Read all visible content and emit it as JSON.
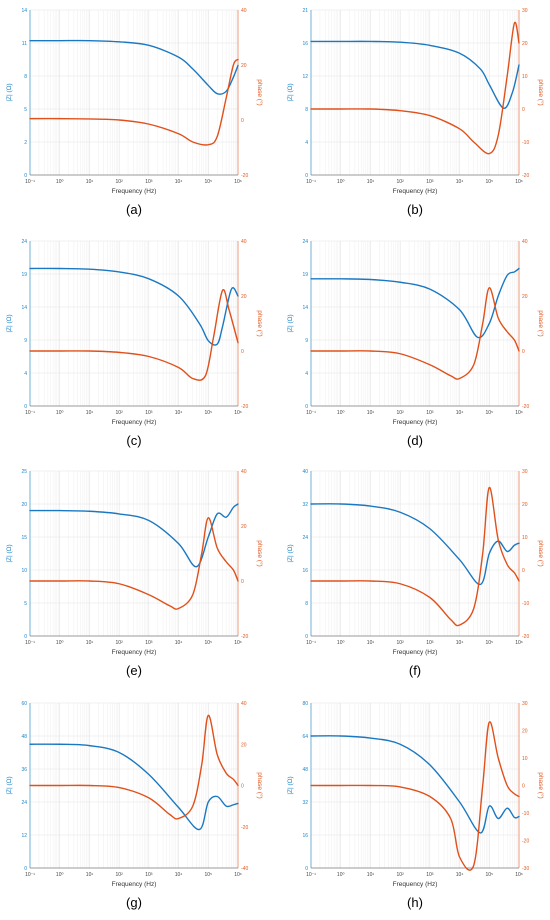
{
  "figure": {
    "colors": {
      "magnitude": "#1a78c2",
      "phase": "#e0501a",
      "grid": "#e6e6e6",
      "axis": "#444444"
    },
    "axis_labels": {
      "x": "Frequency (Hz)",
      "y_left": "|Z| (Ω)",
      "y_right": "phase (°)"
    }
  },
  "chart_data": [
    {
      "panel": "(a)",
      "type": "line",
      "caption": "(a)",
      "xscale": "log",
      "xlim": [
        0.1,
        1000000
      ],
      "x_ticks": [
        "10⁻¹",
        "10⁰",
        "10¹",
        "10²",
        "10³",
        "10⁴",
        "10⁵",
        "10⁶"
      ],
      "xlabel": "Frequency (Hz)",
      "ylabel_left": "|Z| (Ω)",
      "ylabel_right": "phase (°)",
      "ylim_left": [
        0,
        14
      ],
      "ylim_right": [
        -20,
        40
      ],
      "y_ticks_left": [
        "0",
        "2",
        "5",
        "8",
        "11",
        "14"
      ],
      "y_ticks_right": [
        "-20",
        "0",
        "20",
        "40"
      ],
      "series": [
        {
          "axis": "left",
          "x": [
            0.1,
            1,
            10,
            100,
            1000,
            10000,
            30000,
            100000,
            200000,
            400000,
            700000,
            1000000
          ],
          "y": [
            11.4,
            11.4,
            11.4,
            11.3,
            11.0,
            10.0,
            9.0,
            7.6,
            6.9,
            7.1,
            8.3,
            9.3
          ]
        },
        {
          "axis": "right",
          "x": [
            0.1,
            1,
            10,
            100,
            1000,
            10000,
            30000,
            100000,
            200000,
            400000,
            700000,
            1000000
          ],
          "y": [
            0.5,
            0.5,
            0.4,
            0.0,
            -1.5,
            -5.0,
            -8.0,
            -9.0,
            -6.0,
            8.0,
            20.0,
            22.0
          ]
        }
      ]
    },
    {
      "panel": "(b)",
      "type": "line",
      "caption": "(b)",
      "xscale": "log",
      "xlim": [
        0.1,
        1000000
      ],
      "x_ticks": [
        "10⁻¹",
        "10⁰",
        "10¹",
        "10²",
        "10³",
        "10⁴",
        "10⁵",
        "10⁶"
      ],
      "xlabel": "Frequency (Hz)",
      "ylabel_left": "|Z| (Ω)",
      "ylabel_right": "phase (°)",
      "ylim_left": [
        0,
        21
      ],
      "ylim_right": [
        -20,
        30
      ],
      "y_ticks_left": [
        "0",
        "4",
        "8",
        "12",
        "16",
        "21"
      ],
      "y_ticks_right": [
        "-20",
        "-10",
        "0",
        "10",
        "20",
        "30"
      ],
      "series": [
        {
          "axis": "left",
          "x": [
            0.1,
            1,
            10,
            100,
            1000,
            10000,
            50000,
            100000,
            300000,
            600000,
            1000000
          ],
          "y": [
            17.0,
            17.0,
            17.0,
            16.9,
            16.5,
            15.5,
            13.5,
            11.5,
            8.5,
            10.5,
            14.0
          ]
        },
        {
          "axis": "right",
          "x": [
            0.1,
            1,
            10,
            100,
            1000,
            10000,
            30000,
            100000,
            200000,
            400000,
            700000,
            1000000
          ],
          "y": [
            0.0,
            0.0,
            0.0,
            -0.5,
            -2.0,
            -6.0,
            -10.0,
            -13.5,
            -8.0,
            10.0,
            26.0,
            20.0
          ]
        }
      ]
    },
    {
      "panel": "(c)",
      "type": "line",
      "caption": "(c)",
      "xscale": "log",
      "xlim": [
        0.1,
        1000000
      ],
      "x_ticks": [
        "10⁻¹",
        "10⁰",
        "10¹",
        "10²",
        "10³",
        "10⁴",
        "10⁵",
        "10⁶"
      ],
      "xlabel": "Frequency (Hz)",
      "ylabel_left": "|Z| (Ω)",
      "ylabel_right": "phase (°)",
      "ylim_left": [
        0,
        24
      ],
      "ylim_right": [
        -20,
        40
      ],
      "y_ticks_left": [
        "0",
        "4",
        "9",
        "14",
        "19",
        "24"
      ],
      "y_ticks_right": [
        "-20",
        "0",
        "20",
        "40"
      ],
      "series": [
        {
          "axis": "left",
          "x": [
            0.1,
            1,
            10,
            100,
            1000,
            10000,
            50000,
            100000,
            200000,
            300000,
            600000,
            1000000
          ],
          "y": [
            20.0,
            20.0,
            19.9,
            19.5,
            18.5,
            16.0,
            12.0,
            9.5,
            9.0,
            11.5,
            17.0,
            16.0
          ]
        },
        {
          "axis": "right",
          "x": [
            0.1,
            1,
            10,
            100,
            1000,
            10000,
            30000,
            80000,
            150000,
            300000,
            500000,
            1000000
          ],
          "y": [
            0.0,
            0.0,
            0.0,
            -0.5,
            -2.0,
            -6.0,
            -10.0,
            -9.0,
            5.0,
            22.0,
            15.0,
            3.0
          ]
        }
      ]
    },
    {
      "panel": "(d)",
      "type": "line",
      "caption": "(d)",
      "xscale": "log",
      "xlim": [
        0.1,
        1000000
      ],
      "x_ticks": [
        "10⁻¹",
        "10⁰",
        "10¹",
        "10²",
        "10³",
        "10⁴",
        "10⁵",
        "10⁶"
      ],
      "xlabel": "Frequency (Hz)",
      "ylabel_left": "|Z| (Ω)",
      "ylabel_right": "phase (°)",
      "ylim_left": [
        0,
        24
      ],
      "ylim_right": [
        -20,
        40
      ],
      "y_ticks_left": [
        "0",
        "4",
        "9",
        "14",
        "19",
        "24"
      ],
      "y_ticks_right": [
        "-20",
        "0",
        "20",
        "40"
      ],
      "series": [
        {
          "axis": "left",
          "x": [
            0.1,
            1,
            10,
            100,
            1000,
            10000,
            40000,
            100000,
            200000,
            400000,
            700000,
            1000000
          ],
          "y": [
            18.5,
            18.5,
            18.4,
            18.0,
            17.0,
            14.0,
            10.0,
            12.0,
            16.0,
            19.0,
            19.5,
            20.0
          ]
        },
        {
          "axis": "right",
          "x": [
            0.1,
            1,
            10,
            100,
            1000,
            5000,
            10000,
            30000,
            60000,
            100000,
            200000,
            400000,
            700000,
            1000000
          ],
          "y": [
            0.0,
            0.0,
            0.0,
            -1.0,
            -5.0,
            -9.0,
            -10.0,
            -5.0,
            10.0,
            23.0,
            12.0,
            7.0,
            4.0,
            0.0
          ]
        }
      ]
    },
    {
      "panel": "(e)",
      "type": "line",
      "caption": "(e)",
      "xscale": "log",
      "xlim": [
        0.1,
        1000000
      ],
      "x_ticks": [
        "10⁻¹",
        "10⁰",
        "10¹",
        "10²",
        "10³",
        "10⁴",
        "10⁵",
        "10⁶"
      ],
      "xlabel": "Frequency (Hz)",
      "ylabel_left": "|Z| (Ω)",
      "ylabel_right": "phase (°)",
      "ylim_left": [
        0,
        25
      ],
      "ylim_right": [
        -20,
        40
      ],
      "y_ticks_left": [
        "0",
        "5",
        "10",
        "15",
        "20",
        "25"
      ],
      "y_ticks_right": [
        "-20",
        "0",
        "20",
        "40"
      ],
      "series": [
        {
          "axis": "left",
          "x": [
            0.1,
            1,
            10,
            100,
            1000,
            10000,
            40000,
            100000,
            200000,
            400000,
            700000,
            1000000
          ],
          "y": [
            19.0,
            19.0,
            18.9,
            18.5,
            17.5,
            14.0,
            10.5,
            15.0,
            18.5,
            18.0,
            19.5,
            20.0
          ]
        },
        {
          "axis": "right",
          "x": [
            0.1,
            1,
            10,
            100,
            1000,
            5000,
            10000,
            30000,
            60000,
            100000,
            200000,
            400000,
            700000,
            1000000
          ],
          "y": [
            0.0,
            0.0,
            0.0,
            -1.0,
            -5.0,
            -9.0,
            -10.0,
            -5.0,
            10.0,
            23.0,
            12.0,
            7.0,
            4.0,
            0.0
          ]
        }
      ]
    },
    {
      "panel": "(f)",
      "type": "line",
      "caption": "(f)",
      "xscale": "log",
      "xlim": [
        0.1,
        1000000
      ],
      "x_ticks": [
        "10⁻¹",
        "10⁰",
        "10¹",
        "10²",
        "10³",
        "10⁴",
        "10⁵",
        "10⁶"
      ],
      "xlabel": "Frequency (Hz)",
      "ylabel_left": "|Z| (Ω)",
      "ylabel_right": "phase (°)",
      "ylim_left": [
        0,
        40
      ],
      "ylim_right": [
        -20,
        40
      ],
      "y_ticks_left": [
        "0",
        "8",
        "16",
        "24",
        "32",
        "40"
      ],
      "y_ticks_right": [
        "-20",
        "-10",
        "0",
        "10",
        "20",
        "30"
      ],
      "series": [
        {
          "axis": "left",
          "x": [
            0.1,
            1,
            10,
            100,
            1000,
            10000,
            50000,
            100000,
            200000,
            400000,
            700000,
            1000000
          ],
          "y": [
            32.0,
            32.0,
            31.5,
            30.0,
            26.0,
            18.5,
            12.5,
            20.0,
            23.0,
            20.5,
            22.0,
            22.5
          ]
        },
        {
          "axis": "right",
          "x": [
            0.1,
            1,
            10,
            100,
            1000,
            5000,
            10000,
            30000,
            60000,
            100000,
            200000,
            400000,
            700000,
            1000000
          ],
          "y": [
            0.0,
            0.0,
            0.0,
            -1.0,
            -6.0,
            -14.0,
            -16.0,
            -10.0,
            10.0,
            34.0,
            15.0,
            6.0,
            3.0,
            0.0
          ]
        }
      ]
    },
    {
      "panel": "(g)",
      "type": "line",
      "caption": "(g)",
      "xscale": "log",
      "xlim": [
        0.1,
        1000000
      ],
      "x_ticks": [
        "10⁻¹",
        "10⁰",
        "10¹",
        "10²",
        "10³",
        "10⁴",
        "10⁵",
        "10⁶"
      ],
      "xlabel": "Frequency (Hz)",
      "ylabel_left": "|Z| (Ω)",
      "ylabel_right": "phase (°)",
      "ylim_left": [
        0,
        60
      ],
      "ylim_right": [
        -40,
        40
      ],
      "y_ticks_left": [
        "0",
        "12",
        "24",
        "36",
        "48",
        "60"
      ],
      "y_ticks_right": [
        "-40",
        "-20",
        "0",
        "20",
        "40"
      ],
      "series": [
        {
          "axis": "left",
          "x": [
            0.1,
            1,
            10,
            100,
            1000,
            10000,
            50000,
            100000,
            200000,
            400000,
            700000,
            1000000
          ],
          "y": [
            45.0,
            45.0,
            44.5,
            42.0,
            34.0,
            22.0,
            14.0,
            24.0,
            26.0,
            22.5,
            23.0,
            23.5
          ]
        },
        {
          "axis": "right",
          "x": [
            0.1,
            1,
            10,
            100,
            1000,
            5000,
            10000,
            30000,
            60000,
            100000,
            200000,
            400000,
            700000,
            1000000
          ],
          "y": [
            0.0,
            0.0,
            0.0,
            -1.0,
            -6.0,
            -14.0,
            -16.0,
            -10.0,
            10.0,
            34.0,
            15.0,
            6.0,
            3.0,
            0.0
          ]
        }
      ]
    },
    {
      "panel": "(h)",
      "type": "line",
      "caption": "(h)",
      "xscale": "log",
      "xlim": [
        0.1,
        1000000
      ],
      "x_ticks": [
        "10⁻¹",
        "10⁰",
        "10¹",
        "10²",
        "10³",
        "10⁴",
        "10⁵",
        "10⁶"
      ],
      "xlabel": "Frequency (Hz)",
      "ylabel_left": "|Z| (Ω)",
      "ylabel_right": "phase (°)",
      "ylim_left": [
        0,
        80
      ],
      "ylim_right": [
        -30,
        30
      ],
      "y_ticks_left": [
        "0",
        "16",
        "32",
        "48",
        "64",
        "80"
      ],
      "y_ticks_right": [
        "-30",
        "-20",
        "-10",
        "0",
        "10",
        "20",
        "30"
      ],
      "series": [
        {
          "axis": "left",
          "x": [
            0.1,
            1,
            10,
            100,
            1000,
            10000,
            50000,
            100000,
            200000,
            400000,
            700000,
            1000000
          ],
          "y": [
            64.0,
            64.0,
            63.0,
            60.0,
            50.0,
            32.0,
            17.0,
            30.0,
            24.0,
            29.0,
            24.5,
            25.0
          ]
        },
        {
          "axis": "right",
          "x": [
            0.1,
            1,
            10,
            100,
            1000,
            5000,
            10000,
            30000,
            60000,
            100000,
            200000,
            400000,
            700000,
            1000000
          ],
          "y": [
            0.0,
            0.0,
            0.0,
            -0.5,
            -4.0,
            -12.0,
            -26.0,
            -29.0,
            0.0,
            23.0,
            10.0,
            0.0,
            -3.0,
            -4.0
          ]
        }
      ]
    }
  ]
}
